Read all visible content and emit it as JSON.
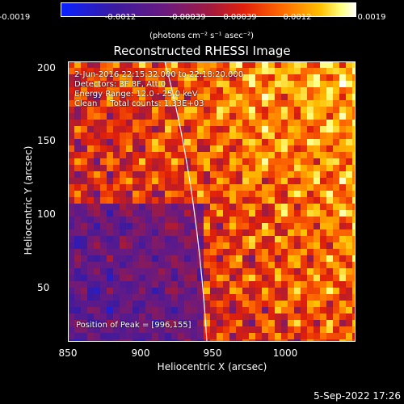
{
  "colorbar": {
    "ticks": [
      "-0.0019",
      "-0.0012",
      "-0.00039",
      "0.00039",
      "0.0012",
      "0.0019"
    ],
    "units": "(photons cm⁻² s⁻¹ asec⁻²)"
  },
  "title": "Reconstructed RHESSI Image",
  "info": {
    "line1": "2-Jun-2016 22:15:32.000 to 22:18:20.000",
    "line2": "Detectors: 3F 8F, Att 0",
    "line3": "Energy Range: 12.0 - 25.0 keV",
    "line4": "Clean     Total counts: 1.33E+03",
    "peak": "Position of Peak = [996,155]"
  },
  "axes": {
    "xlabel": "Heliocentric X (arcsec)",
    "ylabel": "Heliocentric Y (arcsec)",
    "xticks": [
      "850",
      "900",
      "950",
      "1000"
    ],
    "yticks": [
      "200",
      "150",
      "100",
      "50"
    ]
  },
  "footer": {
    "timestamp": "5-Sep-2022 17:26"
  }
}
